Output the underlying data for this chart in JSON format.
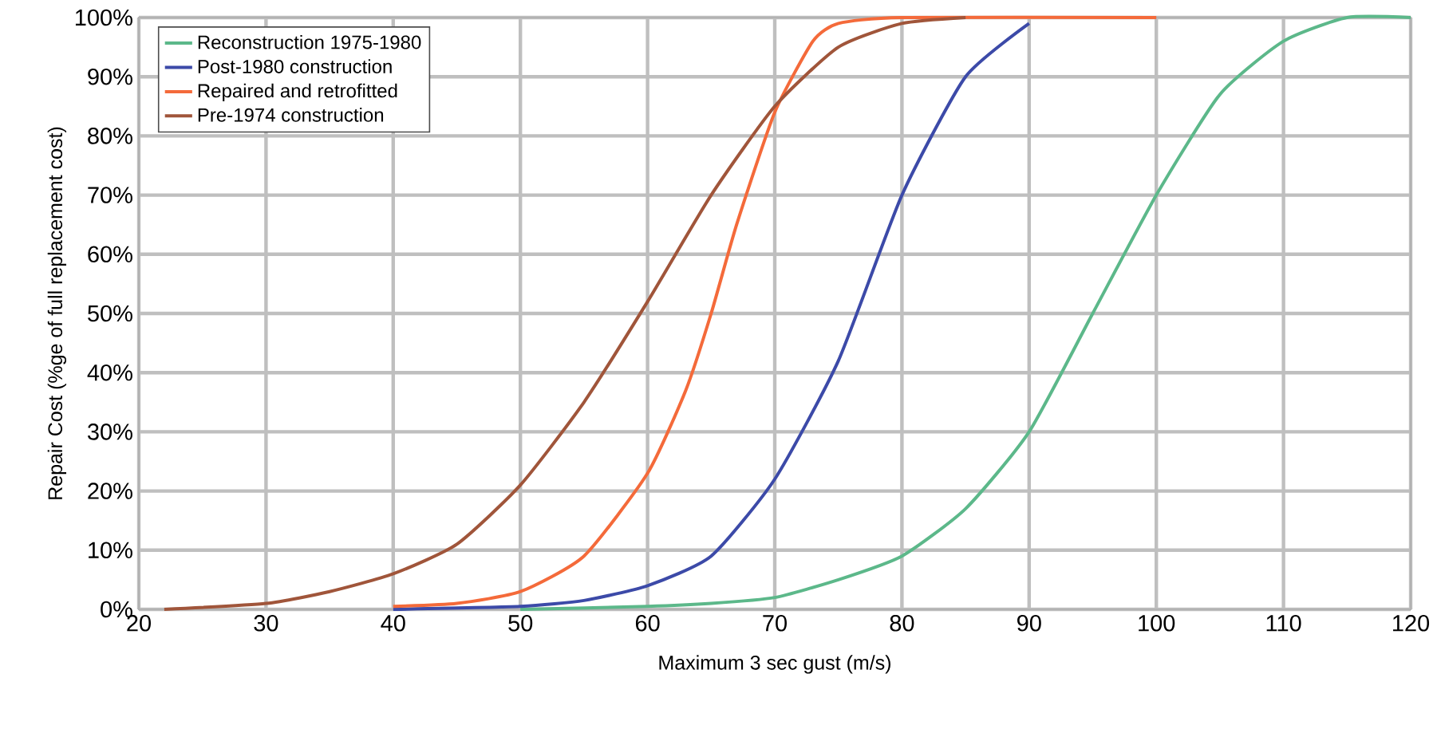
{
  "chart_data": {
    "type": "line",
    "xlabel": "Maximum 3 sec gust (m/s)",
    "ylabel": "Repair Cost (%ge of full replacement cost)",
    "xlim": [
      20,
      120
    ],
    "xticks": [
      20,
      30,
      40,
      50,
      60,
      70,
      80,
      90,
      100,
      110,
      120
    ],
    "ylim": [
      0,
      100
    ],
    "yticks": [
      {
        "value": 0,
        "label": "0%"
      },
      {
        "value": 10,
        "label": "10%"
      },
      {
        "value": 20,
        "label": "20%"
      },
      {
        "value": 30,
        "label": "30%"
      },
      {
        "value": 40,
        "label": "40%"
      },
      {
        "value": 50,
        "label": "50%"
      },
      {
        "value": 60,
        "label": "60%"
      },
      {
        "value": 70,
        "label": "70%"
      },
      {
        "value": 80,
        "label": "80%"
      },
      {
        "value": 90,
        "label": "90%"
      },
      {
        "value": 100,
        "label": "100%"
      }
    ],
    "grid": true,
    "legend": "top left",
    "marker": "none",
    "line_style": "solid",
    "series": [
      {
        "name": "Reconstruction 1975-1980",
        "color": "#5cb88a",
        "x": [
          50,
          60,
          65,
          70,
          75,
          80,
          85,
          90,
          95,
          100,
          105,
          110,
          115,
          120
        ],
        "values": [
          0,
          0.5,
          1,
          2,
          5,
          9,
          17,
          30,
          50,
          70,
          87,
          96,
          100,
          100
        ]
      },
      {
        "name": "Post-1980 construction",
        "color": "#3c4aa8",
        "x": [
          40,
          50,
          55,
          60,
          65,
          70,
          75,
          80,
          85,
          90
        ],
        "values": [
          0,
          0.5,
          1.5,
          4,
          9,
          22,
          42,
          70,
          90,
          99
        ]
      },
      {
        "name": "Repaired and retrofitted",
        "color": "#f46a3a",
        "x": [
          40,
          45,
          50,
          55,
          60,
          63,
          65,
          67,
          70,
          73,
          75,
          80,
          100
        ],
        "values": [
          0.5,
          1,
          3,
          9,
          23,
          37,
          50,
          65,
          84,
          96,
          99,
          100,
          100
        ]
      },
      {
        "name": "Pre-1974 construction",
        "color": "#a0553a",
        "x": [
          22,
          30,
          35,
          40,
          45,
          50,
          55,
          60,
          65,
          70,
          75,
          80,
          85
        ],
        "values": [
          0,
          1,
          3,
          6,
          11,
          21,
          35,
          52,
          70,
          85,
          95,
          99,
          100
        ]
      }
    ]
  }
}
